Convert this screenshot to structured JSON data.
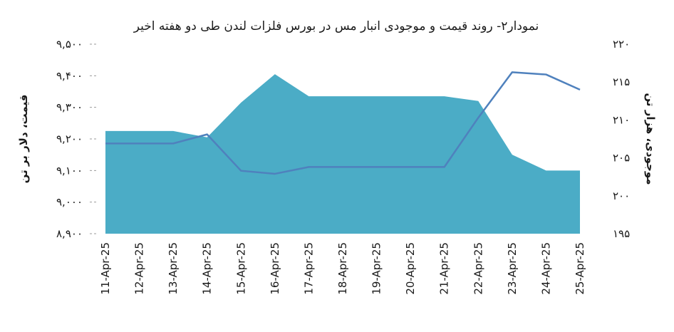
{
  "chart_data": {
    "type": "area+line",
    "title": "نمودار۲- روند قیمت و موجودی انبار مس در بورس فلزات لندن طی دو هفته اخیر",
    "ylabel_left": "قیمت، دلار بر تن",
    "ylabel_right": "موجودی، هزار تن",
    "categories": [
      "11-Apr-25",
      "12-Apr-25",
      "13-Apr-25",
      "14-Apr-25",
      "15-Apr-25",
      "16-Apr-25",
      "17-Apr-25",
      "18-Apr-25",
      "19-Apr-25",
      "20-Apr-25",
      "21-Apr-25",
      "22-Apr-25",
      "23-Apr-25",
      "24-Apr-25",
      "25-Apr-25"
    ],
    "left_axis": {
      "ylim": [
        8900,
        9500
      ],
      "ticks": [
        8900,
        9000,
        9100,
        9200,
        9300,
        9400,
        9500
      ],
      "tick_labels": [
        "۸,۹۰۰",
        "۹,۰۰۰",
        "۹,۱۰۰",
        "۹,۲۰۰",
        "۹,۳۰۰",
        "۹,۴۰۰",
        "۹,۵۰۰"
      ]
    },
    "right_axis": {
      "ylim": [
        195,
        220
      ],
      "ticks": [
        195,
        200,
        205,
        210,
        215,
        220
      ],
      "tick_labels": [
        "۱۹۵",
        "۲۰۰",
        "۲۰۵",
        "۲۱۰",
        "۲۱۵",
        "۲۲۰"
      ]
    },
    "series": [
      {
        "kind": "area",
        "axis": "left",
        "color": "#4bacc6",
        "values": [
          9225,
          9225,
          9225,
          9205,
          9315,
          9405,
          9335,
          9335,
          9335,
          9335,
          9335,
          9320,
          9150,
          9100,
          9100
        ]
      },
      {
        "kind": "line",
        "axis": "right",
        "color": "#4f81bd",
        "values": [
          206.9,
          206.9,
          206.9,
          208.1,
          203.3,
          202.9,
          203.8,
          203.8,
          203.8,
          203.8,
          203.8,
          210.3,
          216.3,
          216.0,
          214.0
        ]
      }
    ],
    "grid": "dashed-left-ticks-only",
    "legend": "none"
  }
}
